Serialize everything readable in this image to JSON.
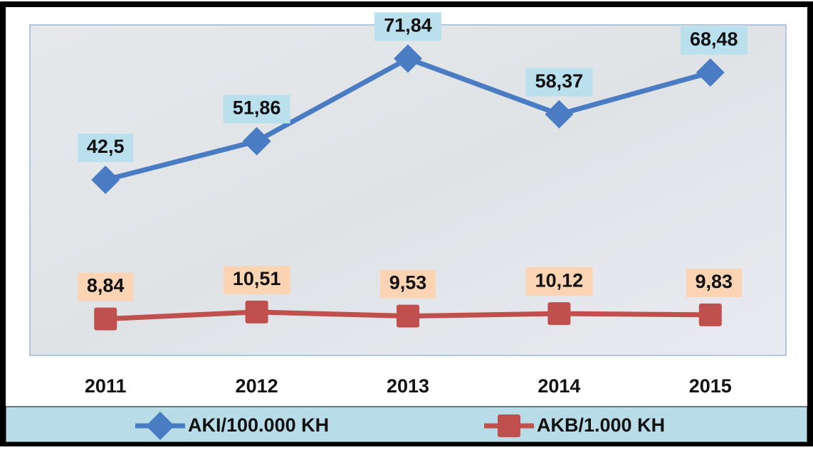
{
  "chart_data": {
    "type": "line",
    "categories": [
      "2011",
      "2012",
      "2013",
      "2014",
      "2015"
    ],
    "series": [
      {
        "name": "AKI/100.000 KH",
        "color": "#4a7cc4",
        "label_color": "#b9e0ec",
        "marker": "diamond",
        "values": [
          42.5,
          51.86,
          71.84,
          58.37,
          68.48
        ],
        "value_labels": [
          "42,5",
          "51,86",
          "71,84",
          "58,37",
          "68,48"
        ]
      },
      {
        "name": "AKB/1.000 KH",
        "color": "#c0504d",
        "label_color": "#fbd4b4",
        "marker": "square",
        "values": [
          8.84,
          10.51,
          9.53,
          10.12,
          9.83
        ],
        "value_labels": [
          "8,84",
          "10,51",
          "9,53",
          "10,12",
          "9,83"
        ]
      }
    ],
    "ylim": [
      0,
      80
    ]
  }
}
